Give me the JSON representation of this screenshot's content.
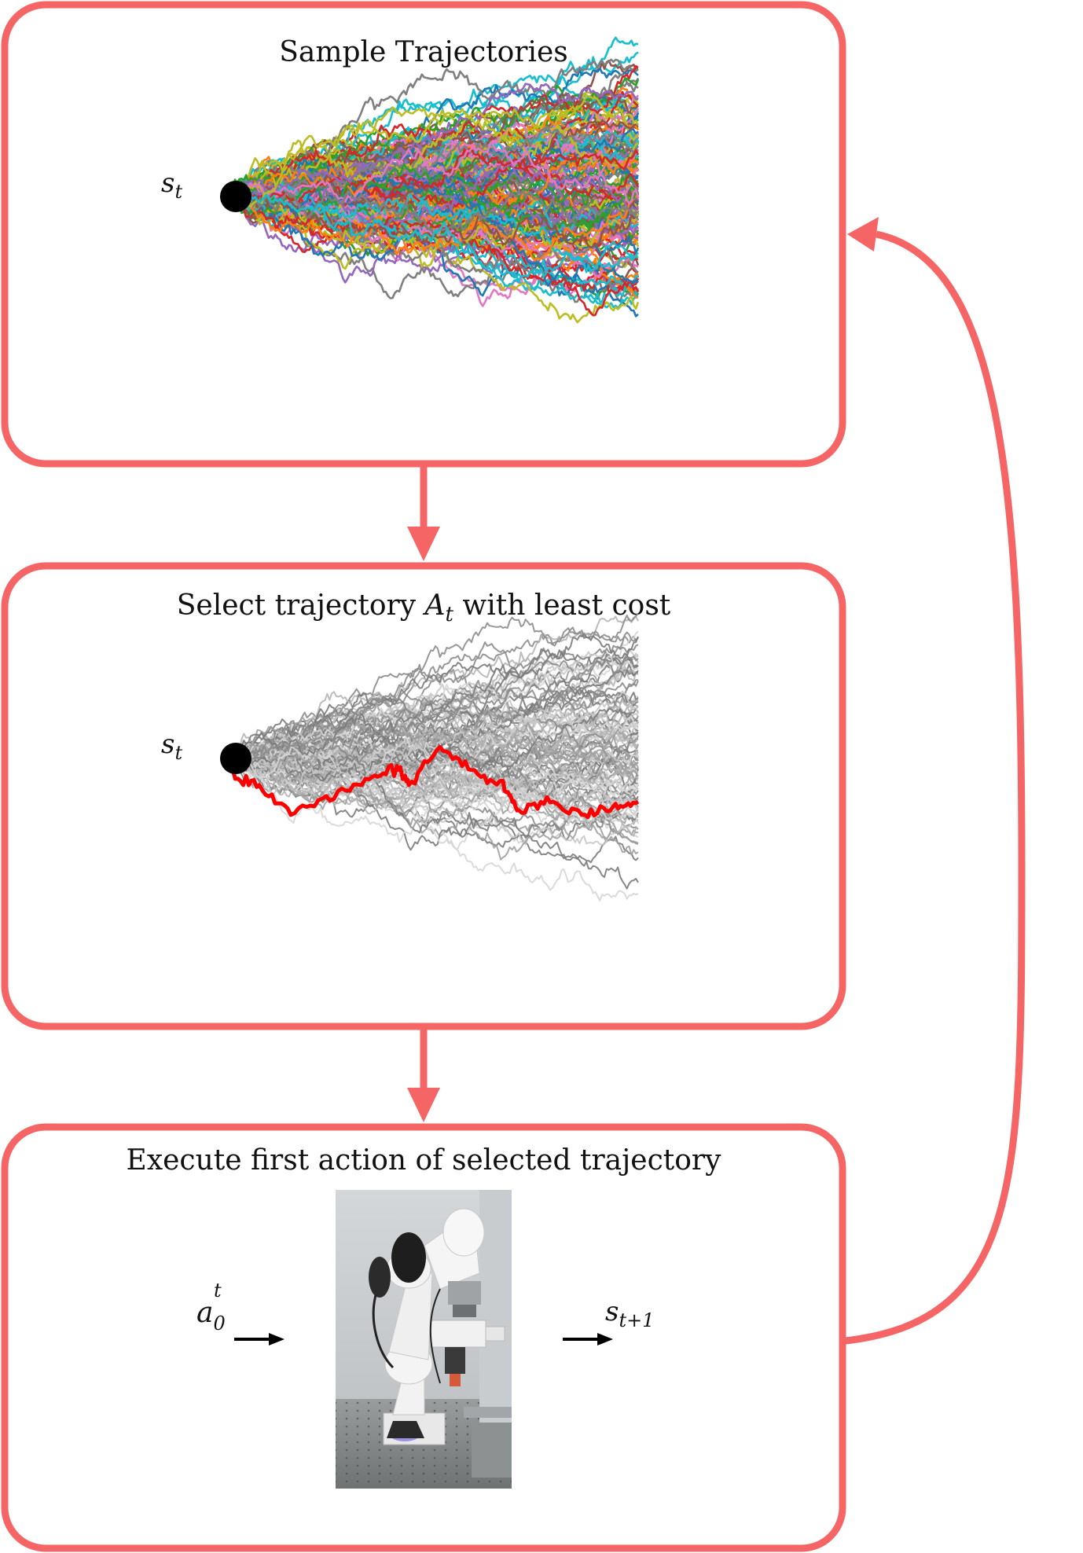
{
  "colors": {
    "accent": "#f56565",
    "highlight": "#ff0000",
    "node": "#000000",
    "palette": [
      "#1f77b4",
      "#ff7f0e",
      "#2ca02c",
      "#d62728",
      "#9467bd",
      "#8c564b",
      "#e377c2",
      "#7f7f7f",
      "#bcbd22",
      "#17becf"
    ]
  },
  "panels": [
    {
      "title": "Sample Trajectories",
      "state_label": "s",
      "state_sub": "t"
    },
    {
      "title_prefix": "Select trajectory ",
      "title_var": "A",
      "title_var_sub": "t",
      "title_suffix": " with least cost",
      "state_label": "s",
      "state_sub": "t"
    },
    {
      "title": "Execute first action of selected trajectory",
      "action_label": "a",
      "action_sub": "0",
      "action_sup": "t",
      "next_state_label": "s",
      "next_state_sub": "t+1",
      "image": "robot-arm-photo"
    }
  ]
}
